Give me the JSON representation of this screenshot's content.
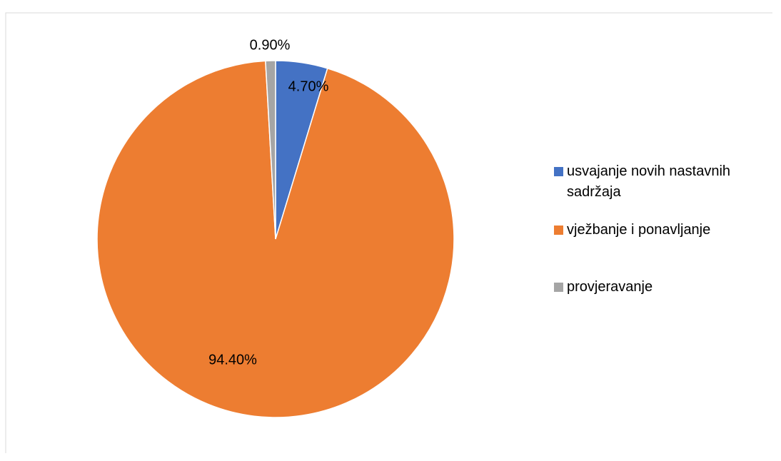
{
  "chart_data": {
    "type": "pie",
    "categories": [
      "usvajanje novih nastavnih sadržaja",
      "vježbanje i ponavljanje",
      "provjeravanje"
    ],
    "values": [
      4.7,
      94.4,
      0.9
    ],
    "value_labels": [
      "4.70%",
      "94.40%",
      "0.90%"
    ],
    "colors": [
      "#4472c4",
      "#ed7d31",
      "#a5a5a5"
    ],
    "legend": "right"
  }
}
